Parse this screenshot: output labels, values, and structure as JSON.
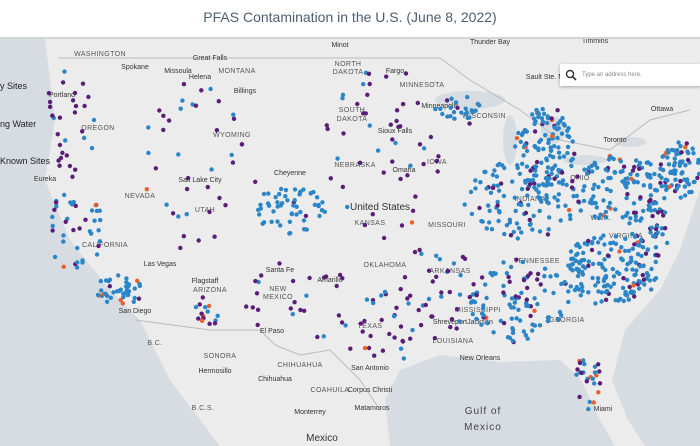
{
  "header": {
    "title": "PFAS Contamination in the U.S. (June 8, 2022)"
  },
  "legend": [
    "y Sites",
    "ng Water",
    "Known Sites"
  ],
  "search": {
    "placeholder": "Type an address here."
  },
  "map": {
    "labels": [
      "WASHINGTON",
      "Spokane",
      "Great Falls",
      "Missoula",
      "Helena",
      "MONTANA",
      "Billings",
      "Portland",
      "OREGON",
      "WYOMING",
      "NORTH",
      "DAKOTA",
      "Minot",
      "Fargo",
      "MINNESOTA",
      "Minneapolis",
      "WISCONSIN",
      "SOUTH",
      "DAKOTA",
      "Sioux Falls",
      "IOWA",
      "NEBRASKA",
      "Omaha",
      "Cheyenne",
      "Salt Lake City",
      "Eureka",
      "NEVADA",
      "UTAH",
      "United States",
      "KANSAS",
      "MISSOURI",
      "INDIANA",
      "OHIO",
      "W.VA.",
      "VIRGINIA",
      "Toronto",
      "Ottawa",
      "CALIFORNIA",
      "Las Vegas",
      "Santa Fe",
      "Amarillo",
      "OKLAHOMA",
      "TENNESSEE",
      "Flagstaff",
      "ARIZONA",
      "NEW",
      "MEXICO",
      "San Diego",
      "ARKANSAS",
      "El Paso",
      "TEXAS",
      "Shreveport",
      "MISSISSIPPI",
      "Jackson",
      "GEORGIA",
      "LOUISIANA",
      "New Orleans",
      "SONORA",
      "Hermosillo",
      "CHIHUAHUA",
      "Chihuahua",
      "San Antonio",
      "COAHUILA",
      "Corpus Christi",
      "Matamoros",
      "Monterrey",
      "B.C.",
      "B.C.S.",
      "Gulf of",
      "Mexico",
      "Mexico",
      "Thunder Bay",
      "Timmins",
      "Sault Ste. M",
      "Miami"
    ]
  }
}
